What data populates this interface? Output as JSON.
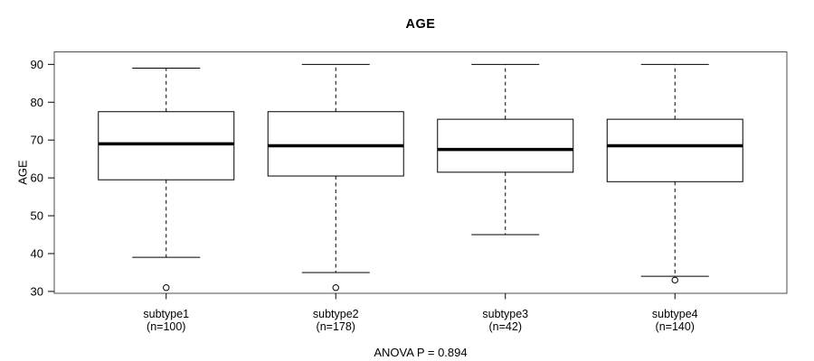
{
  "chart_data": {
    "type": "boxplot",
    "title": "AGE",
    "xlabel": "",
    "ylabel": "AGE",
    "annotation": "ANOVA P = 0.894",
    "ylim": [
      29.5,
      93.3
    ],
    "yticks": [
      30,
      40,
      50,
      60,
      70,
      80,
      90
    ],
    "grid": false,
    "legend": "none",
    "categories": [
      "subtype1",
      "subtype2",
      "subtype3",
      "subtype4"
    ],
    "category_counts": [
      "(n=100)",
      "(n=178)",
      "(n=42)",
      "(n=140)"
    ],
    "series": [
      {
        "name": "subtype1",
        "n": 100,
        "whisker_low": 39,
        "q1": 59.5,
        "median": 69,
        "q3": 77.5,
        "whisker_high": 89,
        "outliers": [
          31
        ]
      },
      {
        "name": "subtype2",
        "n": 178,
        "whisker_low": 35,
        "q1": 60.5,
        "median": 68.5,
        "q3": 77.5,
        "whisker_high": 90,
        "outliers": [
          31
        ]
      },
      {
        "name": "subtype3",
        "n": 42,
        "whisker_low": 45,
        "q1": 61.5,
        "median": 67.5,
        "q3": 75.5,
        "whisker_high": 90,
        "outliers": []
      },
      {
        "name": "subtype4",
        "n": 140,
        "whisker_low": 34,
        "q1": 59,
        "median": 68.5,
        "q3": 75.5,
        "whisker_high": 90,
        "outliers": [
          33
        ]
      }
    ],
    "colors": {
      "stroke": "#000000",
      "frame": "#4d4d4d",
      "background": "#ffffff"
    }
  }
}
